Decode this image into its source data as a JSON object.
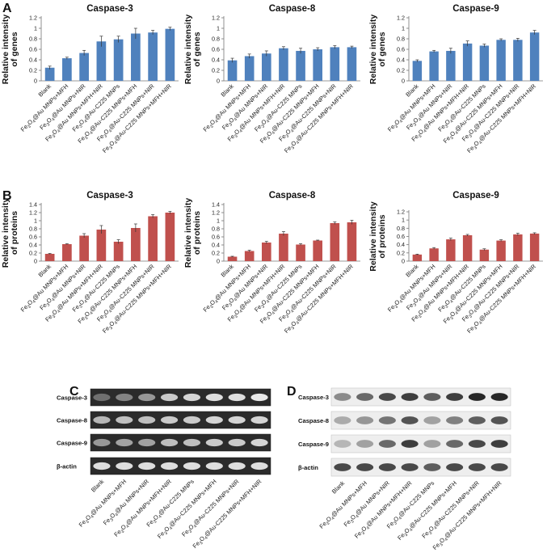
{
  "panels": [
    {
      "letter": "A",
      "ylabel_line1": "Relative intensity",
      "ylabel_line2": "of genes"
    },
    {
      "letter": "B",
      "ylabel_line1": "Relative intensity",
      "ylabel_line2": "of proteins"
    },
    {
      "letter": "C"
    },
    {
      "letter": "D"
    }
  ],
  "colors": {
    "genes": "#4f81bd",
    "proteins": "#c0504d"
  },
  "chart_data": [
    {
      "type": "bar",
      "panel": "A",
      "title": "Caspase-3",
      "ylabel": "Relative intensity of genes",
      "ylim": [
        0,
        1.2
      ],
      "yticks": [
        0,
        0.2,
        0.4,
        0.6,
        0.8,
        1,
        1.2
      ],
      "grid": false,
      "categories": [
        "Blank",
        "Fe3O4@Au MNPs+MFH",
        "Fe3O4@Au MNPs+NIR",
        "Fe3O4@Au MNPs+MFH+NIR",
        "Fe3O4@Au-C225 MNPs",
        "Fe3O4@Au-C225 MNPs+MFH",
        "Fe3O4@Au-C225 MNPs+NIR",
        "Fe3O4@Au-C225 MNPs+MFH+NIR"
      ],
      "values": [
        0.25,
        0.43,
        0.53,
        0.75,
        0.79,
        0.9,
        0.92,
        0.99
      ],
      "errors": [
        0.03,
        0.02,
        0.05,
        0.1,
        0.06,
        0.1,
        0.04,
        0.03
      ]
    },
    {
      "type": "bar",
      "panel": "A",
      "title": "Caspase-8",
      "ylabel": "Relative intensity of genes",
      "ylim": [
        0,
        1.2
      ],
      "yticks": [
        0,
        0.2,
        0.4,
        0.6,
        0.8,
        1,
        1.2
      ],
      "grid": false,
      "categories": [
        "Blank",
        "Fe3O4@Au MNPs+MFH",
        "Fe3O4@Au MNPs+NIR",
        "Fe3O4@Au MNPs+MFH+NIR",
        "Fe3O4@Au-C225 MNPs",
        "Fe3O4@Au-C225 MNPs+MFH",
        "Fe3O4@Au-C225 MNPs+NIR",
        "Fe3O4@Au-C225 MNPs+MFH+NIR"
      ],
      "values": [
        0.39,
        0.47,
        0.52,
        0.62,
        0.57,
        0.6,
        0.64,
        0.64
      ],
      "errors": [
        0.04,
        0.04,
        0.05,
        0.03,
        0.05,
        0.03,
        0.03,
        0.02
      ]
    },
    {
      "type": "bar",
      "panel": "A",
      "title": "Caspase-9",
      "ylabel": "Relative intensity of genes",
      "ylim": [
        0,
        1.2
      ],
      "yticks": [
        0,
        0.2,
        0.4,
        0.6,
        0.8,
        1,
        1.2
      ],
      "grid": false,
      "categories": [
        "Blank",
        "Fe3O4@Au MNPs+MFH",
        "Fe3O4@Au MNPs+NIR",
        "Fe3O4@Au MNPs+MFH+NIR",
        "Fe3O4@Au-C225 MNPs",
        "Fe3O4@Au-C225 MNPs+MFH",
        "Fe3O4@Au-C225 MNPs+NIR",
        "Fe3O4@Au-C225 MNPs+MFH+NIR"
      ],
      "values": [
        0.38,
        0.56,
        0.57,
        0.71,
        0.67,
        0.78,
        0.78,
        0.92
      ],
      "errors": [
        0.02,
        0.02,
        0.05,
        0.05,
        0.03,
        0.02,
        0.03,
        0.04
      ]
    },
    {
      "type": "bar",
      "panel": "B",
      "title": "Caspase-3",
      "ylabel": "Relative intensity of proteins",
      "ylim": [
        0,
        1.4
      ],
      "yticks": [
        0,
        0.2,
        0.4,
        0.6,
        0.8,
        1,
        1.2,
        1.4
      ],
      "grid": false,
      "categories": [
        "Blank",
        "Fe3O4@Au MNPs+MFH",
        "Fe3O4@Au MNPs+NIR",
        "Fe3O4@Au MNPs+MFH+NIR",
        "Fe3O4@Au-C225 MNPs",
        "Fe3O4@Au-C225 MNPs+MFH",
        "Fe3O4@Au-C225 MNPs+NIR",
        "Fe3O4@Au-C225 MNPs+MFH+NIR"
      ],
      "values": [
        0.18,
        0.42,
        0.63,
        0.78,
        0.48,
        0.82,
        1.11,
        1.2
      ],
      "errors": [
        0.01,
        0.01,
        0.05,
        0.1,
        0.05,
        0.1,
        0.04,
        0.03
      ]
    },
    {
      "type": "bar",
      "panel": "B",
      "title": "Caspase-8",
      "ylabel": "Relative intensity of proteins",
      "ylim": [
        0,
        1.4
      ],
      "yticks": [
        0,
        0.2,
        0.4,
        0.6,
        0.8,
        1,
        1.2,
        1.4
      ],
      "grid": false,
      "categories": [
        "Blank",
        "Fe3O4@Au MNPs+MFH",
        "Fe3O4@Au MNPs+NIR",
        "Fe3O4@Au MNPs+MFH+NIR",
        "Fe3O4@Au-C225 MNPs",
        "Fe3O4@Au-C225 MNPs+MFH",
        "Fe3O4@Au-C225 MNPs+NIR",
        "Fe3O4@Au-C225 MNPs+MFH+NIR"
      ],
      "values": [
        0.11,
        0.25,
        0.46,
        0.68,
        0.41,
        0.51,
        0.94,
        0.96
      ],
      "errors": [
        0.01,
        0.02,
        0.03,
        0.05,
        0.02,
        0.01,
        0.03,
        0.05
      ]
    },
    {
      "type": "bar",
      "panel": "B",
      "title": "Caspase-9",
      "ylabel": "Relative intensity of proteins",
      "ylim": [
        0,
        1.2
      ],
      "yticks": [
        0,
        0.2,
        0.4,
        0.6,
        0.8,
        1,
        1.2
      ],
      "grid": false,
      "categories": [
        "Blank",
        "Fe3O4@Au MNPs+MFH",
        "Fe3O4@Au MNPs+NIR",
        "Fe3O4@Au MNPs+MFH+NIR",
        "Fe3O4@Au-C225 MNPs",
        "Fe3O4@Au-C225 MNPs+MFH",
        "Fe3O4@Au-C225 MNPs+NIR",
        "Fe3O4@Au-C225 MNPs+MFH+NIR"
      ],
      "values": [
        0.16,
        0.31,
        0.53,
        0.63,
        0.28,
        0.5,
        0.65,
        0.67
      ],
      "errors": [
        0.01,
        0.02,
        0.03,
        0.02,
        0.02,
        0.02,
        0.03,
        0.02
      ]
    }
  ],
  "blots": {
    "C": {
      "rows": [
        "Caspase-3",
        "Caspase-8",
        "Caspase-9",
        "β-actin"
      ],
      "lane_labels": [
        "Blank",
        "Fe3O4@Au MNPs+MFH",
        "Fe3O4@Au MNPs+NIR",
        "Fe3O4@Au MNPs+MFH+NIR",
        "Fe3O4@Au-C225 MNPs",
        "Fe3O4@Au-C225 MNPs+MFH",
        "Fe3O4@Au-C225 MNPs+NIR",
        "Fe3O4@Au-C225 MNPs+MFH+NIR"
      ]
    },
    "D": {
      "rows": [
        "Caspase-3",
        "Caspase-8",
        "Caspase-9",
        "β-actin"
      ],
      "lane_labels": [
        "Blank",
        "Fe3O4@Au MNPs+MFH",
        "Fe3O4@Au MNPs+NIR",
        "Fe3O4@Au MNPs+MFH+NIR",
        "Fe3O4@Au-C225 MNPs",
        "Fe3O4@Au-C225 MNPs+MFH",
        "Fe3O4@Au-C225 MNPs+NIR",
        "Fe3O4@Au-C225 MNPs+MFH+NIR"
      ]
    }
  }
}
